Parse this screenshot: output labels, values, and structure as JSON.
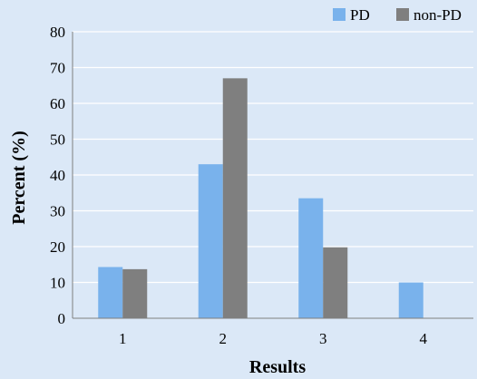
{
  "chart_data": {
    "type": "bar",
    "title": "",
    "xlabel": "Results",
    "ylabel": "Percent (%)",
    "categories": [
      "1",
      "2",
      "3",
      "4"
    ],
    "series": [
      {
        "name": "PD",
        "values": [
          14.3,
          43.0,
          33.5,
          10.0
        ]
      },
      {
        "name": "non-PD",
        "values": [
          13.7,
          67.0,
          19.8,
          0
        ]
      }
    ],
    "ylim": [
      0,
      80
    ],
    "yticks": [
      "0",
      "10",
      "20",
      "30",
      "40",
      "50",
      "60",
      "70",
      "80"
    ],
    "grid": true,
    "legend_position": "top-right"
  },
  "colors": {
    "background": "#dbe8f7",
    "gridline": "#ffffff",
    "axis": "#7f7f7f",
    "PD": "#79b2ec",
    "non-PD": "#7f7f7f"
  }
}
